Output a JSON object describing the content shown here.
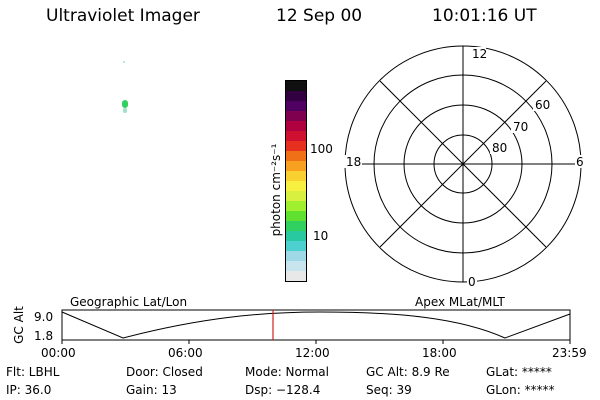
{
  "header": {
    "instrument": "Ultraviolet Imager",
    "date": "12 Sep 00",
    "time": "10:01:16 UT"
  },
  "colorbar": {
    "label": "photon cm⁻²s⁻¹",
    "tick_high": "100",
    "tick_low": "10",
    "colors": [
      "#e8e8e8",
      "#c8e4ec",
      "#9fd8e6",
      "#4fd0d0",
      "#28c8a0",
      "#30d060",
      "#60e030",
      "#a0f030",
      "#d8f040",
      "#f8f040",
      "#f8d030",
      "#f8a020",
      "#f07018",
      "#e83020",
      "#d01030",
      "#b00040",
      "#800050",
      "#500060",
      "#300040",
      "#101010"
    ]
  },
  "polar": {
    "label_top": "12",
    "label_bottom": "0",
    "label_left": "18",
    "label_right": "6",
    "ring_60": "60",
    "ring_70": "70",
    "ring_80": "80"
  },
  "timeline": {
    "left_label": "Geographic Lat/Lon",
    "right_label": "Apex MLat/MLT",
    "axis_label": "GC Alt",
    "y_top": "9.0",
    "y_bottom": "1.8",
    "ticks": [
      "00:00",
      "06:00",
      "12:00",
      "18:00",
      "23:59"
    ]
  },
  "info": {
    "flt": "Flt: LBHL",
    "ip": "IP: 36.0",
    "door": "Door: Closed",
    "gain": "Gain: 13",
    "mode": "Mode: Normal",
    "dsp": "Dsp: −128.4",
    "gcalt": "GC Alt: 8.9 Re",
    "seq": "Seq: 39",
    "glat": "GLat: *****",
    "glon": "GLon: *****"
  }
}
